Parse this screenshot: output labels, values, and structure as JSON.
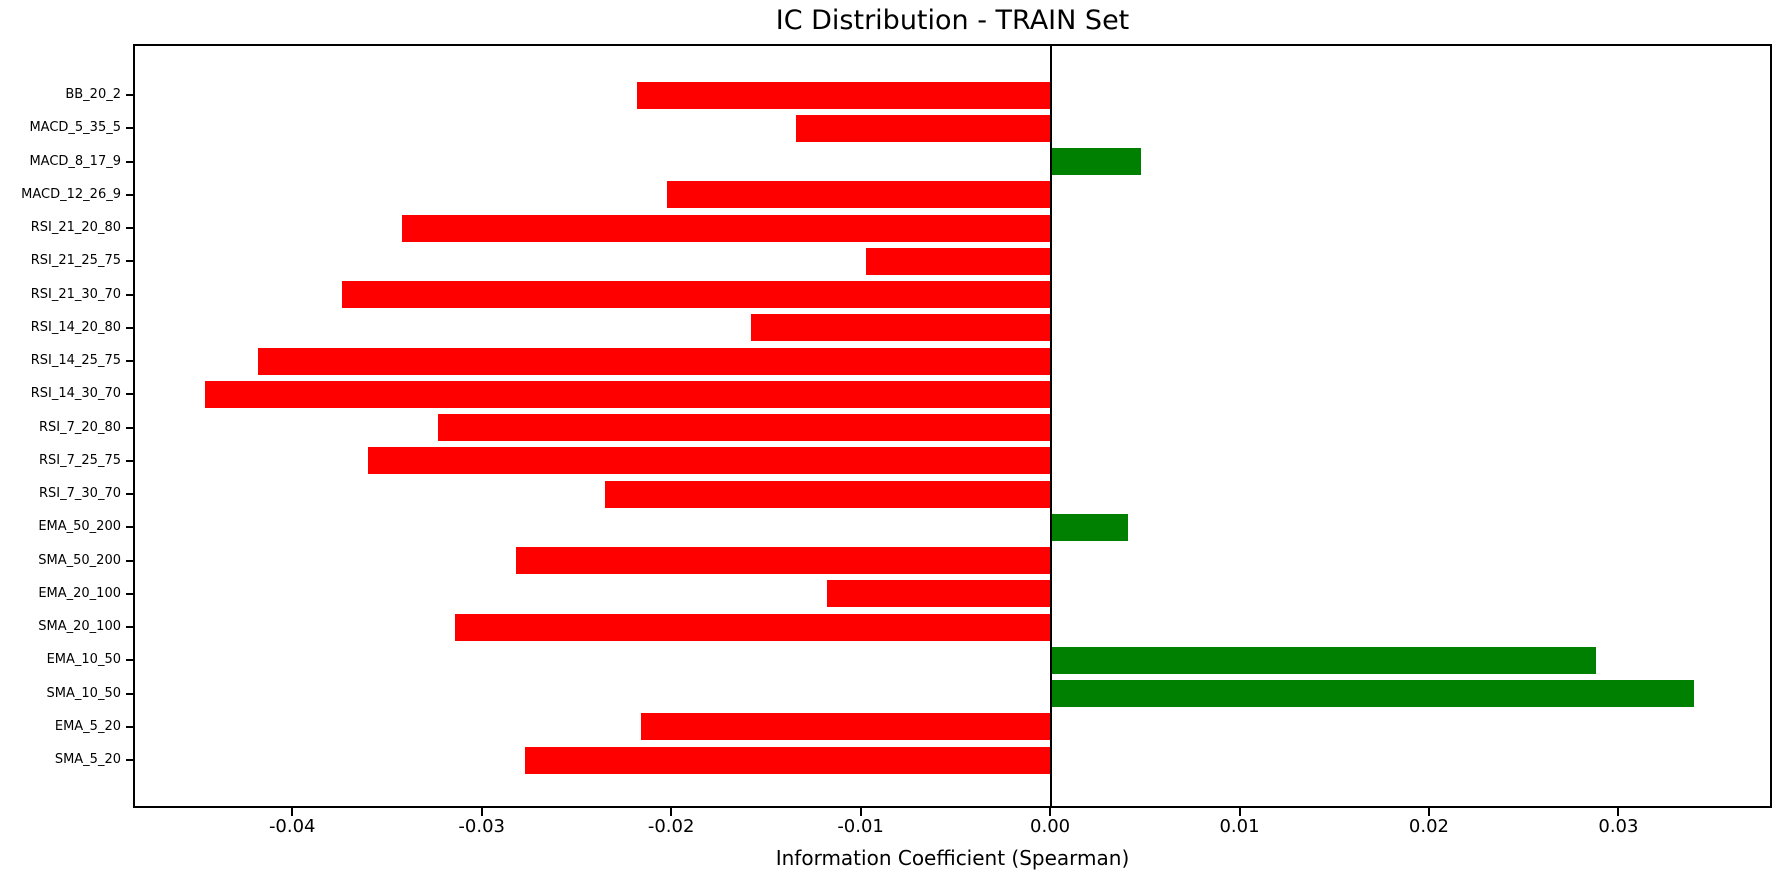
{
  "chart_data": {
    "type": "bar",
    "orientation": "horizontal",
    "title": "IC Distribution - TRAIN Set",
    "xlabel": "Information Coefficient (Spearman)",
    "ylabel": "",
    "grid": false,
    "legend": null,
    "zero_line": true,
    "xlim": [
      -0.0483,
      0.038
    ],
    "xticks": [
      -0.04,
      -0.03,
      -0.02,
      -0.01,
      0.0,
      0.01,
      0.02,
      0.03
    ],
    "xtick_labels": [
      "-0.04",
      "-0.03",
      "-0.02",
      "-0.01",
      "0.00",
      "0.01",
      "0.02",
      "0.03"
    ],
    "categories": [
      "BB_20_2",
      "MACD_5_35_5",
      "MACD_8_17_9",
      "MACD_12_26_9",
      "RSI_21_20_80",
      "RSI_21_25_75",
      "RSI_21_30_70",
      "RSI_14_20_80",
      "RSI_14_25_75",
      "RSI_14_30_70",
      "RSI_7_20_80",
      "RSI_7_25_75",
      "RSI_7_30_70",
      "EMA_50_200",
      "SMA_50_200",
      "EMA_20_100",
      "SMA_20_100",
      "EMA_10_50",
      "SMA_10_50",
      "EMA_5_20",
      "SMA_5_20"
    ],
    "values": [
      -0.0218,
      -0.0134,
      0.0048,
      -0.0202,
      -0.0342,
      -0.0097,
      -0.0374,
      -0.0158,
      -0.0418,
      -0.0446,
      -0.0323,
      -0.036,
      -0.0235,
      0.0041,
      -0.0282,
      -0.0118,
      -0.0314,
      0.0288,
      0.034,
      -0.0216,
      -0.0277
    ],
    "colors": {
      "positive_bar": "#008000",
      "negative_bar": "#ff0000",
      "zero_line": "#000000",
      "text": "#000000"
    }
  }
}
